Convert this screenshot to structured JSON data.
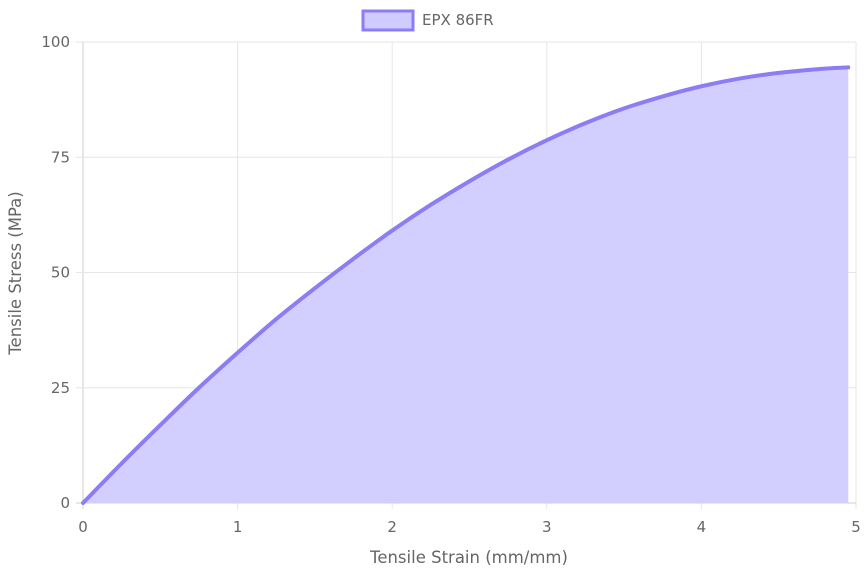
{
  "chart_data": {
    "type": "area",
    "title": "",
    "xlabel": "Tensile Strain (mm/mm)",
    "ylabel": "Tensile Stress (MPa)",
    "xlim": [
      0,
      5
    ],
    "ylim": [
      0,
      100
    ],
    "x_ticks": [
      "0",
      "1",
      "2",
      "3",
      "4",
      "5"
    ],
    "y_ticks": [
      "0",
      "25",
      "50",
      "75",
      "100"
    ],
    "grid": true,
    "legend_position": "top-center",
    "series": [
      {
        "name": "EPX 86FR",
        "color": "#8c7cf5",
        "fill_color": "#d0ccff",
        "x": [
          0,
          0.25,
          0.5,
          0.75,
          1.0,
          1.25,
          1.5,
          1.75,
          2.0,
          2.25,
          2.5,
          2.75,
          3.0,
          3.25,
          3.5,
          3.75,
          4.0,
          4.25,
          4.5,
          4.75,
          4.95
        ],
        "y": [
          0,
          8.6,
          16.9,
          25.0,
          32.6,
          39.9,
          46.6,
          53.0,
          59.1,
          64.7,
          69.8,
          74.5,
          78.7,
          82.4,
          85.6,
          88.2,
          90.4,
          92.1,
          93.3,
          94.1,
          94.5
        ]
      }
    ]
  }
}
